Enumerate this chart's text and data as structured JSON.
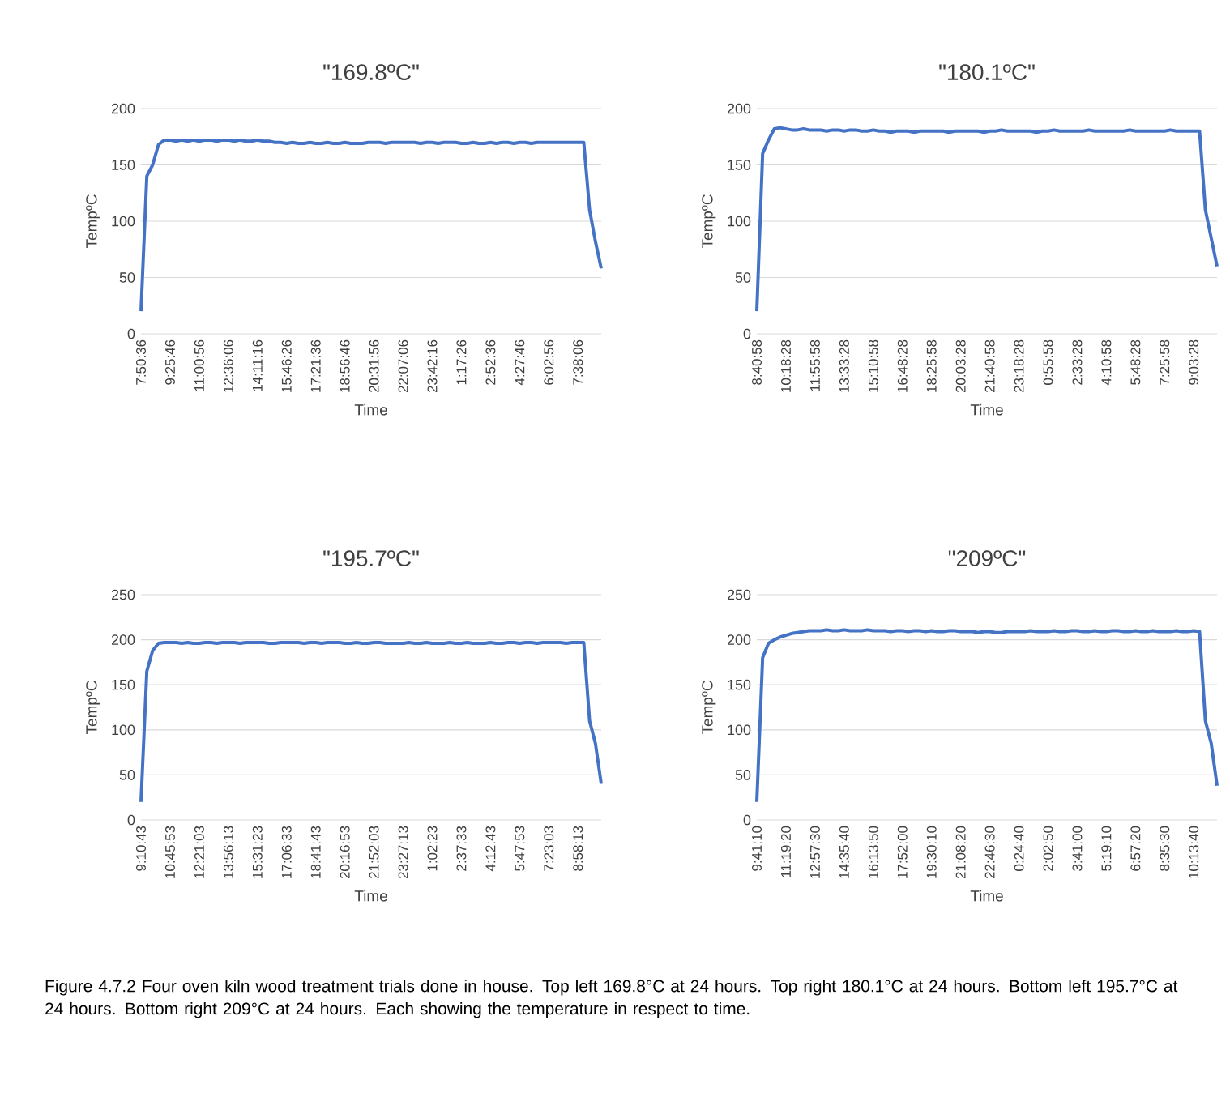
{
  "chart_data": [
    {
      "type": "line",
      "title": "\"169.8ºC\"",
      "xlabel": "Time",
      "ylabel": "TempºC",
      "color": "#4472c4",
      "grid": "y",
      "categories": [
        "7:50:36",
        null,
        null,
        null,
        null,
        "9:25:46",
        null,
        null,
        null,
        null,
        "11:00:56",
        null,
        null,
        null,
        null,
        "12:36:06",
        null,
        null,
        null,
        null,
        "14:11:16",
        null,
        null,
        null,
        null,
        "15:46:26",
        null,
        null,
        null,
        null,
        "17:21:36",
        null,
        null,
        null,
        null,
        "18:56:46",
        null,
        null,
        null,
        null,
        "20:31:56",
        null,
        null,
        null,
        null,
        "22:07:06",
        null,
        null,
        null,
        null,
        "23:42:16",
        null,
        null,
        null,
        null,
        "1:17:26",
        null,
        null,
        null,
        null,
        "2:52:36",
        null,
        null,
        null,
        null,
        "4:27:46",
        null,
        null,
        null,
        null,
        "6:02:56",
        null,
        null,
        null,
        null,
        "7:38:06",
        null,
        null,
        null,
        null
      ],
      "values": [
        20,
        140,
        150,
        168,
        172,
        172,
        171,
        172,
        171,
        172,
        171,
        172,
        172,
        171,
        172,
        172,
        171,
        172,
        171,
        171,
        172,
        171,
        171,
        170,
        170,
        169,
        170,
        169,
        169,
        170,
        169,
        169,
        170,
        169,
        169,
        170,
        169,
        169,
        169,
        170,
        170,
        170,
        169,
        170,
        170,
        170,
        170,
        170,
        169,
        170,
        170,
        169,
        170,
        170,
        170,
        169,
        169,
        170,
        169,
        169,
        170,
        169,
        170,
        170,
        169,
        170,
        170,
        169,
        170,
        170,
        170,
        170,
        170,
        170,
        170,
        170,
        170,
        110,
        82,
        58
      ],
      "ylim": [
        0,
        200
      ],
      "yticks": [
        0,
        50,
        100,
        150,
        200
      ]
    },
    {
      "type": "line",
      "title": "\"180.1ºC\"",
      "xlabel": "Time",
      "ylabel": "TempºC",
      "color": "#4472c4",
      "grid": "y",
      "categories": [
        "8:40:58",
        null,
        null,
        null,
        null,
        "10:18:28",
        null,
        null,
        null,
        null,
        "11:55:58",
        null,
        null,
        null,
        null,
        "13:33:28",
        null,
        null,
        null,
        null,
        "15:10:58",
        null,
        null,
        null,
        null,
        "16:48:28",
        null,
        null,
        null,
        null,
        "18:25:58",
        null,
        null,
        null,
        null,
        "20:03:28",
        null,
        null,
        null,
        null,
        "21:40:58",
        null,
        null,
        null,
        null,
        "23:18:28",
        null,
        null,
        null,
        null,
        "0:55:58",
        null,
        null,
        null,
        null,
        "2:33:28",
        null,
        null,
        null,
        null,
        "4:10:58",
        null,
        null,
        null,
        null,
        "5:48:28",
        null,
        null,
        null,
        null,
        "7:25:58",
        null,
        null,
        null,
        null,
        "9:03:28",
        null,
        null,
        null,
        null
      ],
      "values": [
        20,
        160,
        172,
        182,
        183,
        182,
        181,
        181,
        182,
        181,
        181,
        181,
        180,
        181,
        181,
        180,
        181,
        181,
        180,
        180,
        181,
        180,
        180,
        179,
        180,
        180,
        180,
        179,
        180,
        180,
        180,
        180,
        180,
        179,
        180,
        180,
        180,
        180,
        180,
        179,
        180,
        180,
        181,
        180,
        180,
        180,
        180,
        180,
        179,
        180,
        180,
        181,
        180,
        180,
        180,
        180,
        180,
        181,
        180,
        180,
        180,
        180,
        180,
        180,
        181,
        180,
        180,
        180,
        180,
        180,
        180,
        181,
        180,
        180,
        180,
        180,
        180,
        110,
        85,
        60
      ],
      "ylim": [
        0,
        200
      ],
      "yticks": [
        0,
        50,
        100,
        150,
        200
      ]
    },
    {
      "type": "line",
      "title": "\"195.7ºC\"",
      "xlabel": "Time",
      "ylabel": "TempºC",
      "color": "#4472c4",
      "grid": "y",
      "categories": [
        "9:10:43",
        null,
        null,
        null,
        null,
        "10:45:53",
        null,
        null,
        null,
        null,
        "12:21:03",
        null,
        null,
        null,
        null,
        "13:56:13",
        null,
        null,
        null,
        null,
        "15:31:23",
        null,
        null,
        null,
        null,
        "17:06:33",
        null,
        null,
        null,
        null,
        "18:41:43",
        null,
        null,
        null,
        null,
        "20:16:53",
        null,
        null,
        null,
        null,
        "21:52:03",
        null,
        null,
        null,
        null,
        "23:27:13",
        null,
        null,
        null,
        null,
        "1:02:23",
        null,
        null,
        null,
        null,
        "2:37:33",
        null,
        null,
        null,
        null,
        "4:12:43",
        null,
        null,
        null,
        null,
        "5:47:53",
        null,
        null,
        null,
        null,
        "7:23:03",
        null,
        null,
        null,
        null,
        "8:58:13",
        null,
        null,
        null,
        null
      ],
      "values": [
        20,
        165,
        188,
        196,
        197,
        197,
        197,
        196,
        197,
        196,
        196,
        197,
        197,
        196,
        197,
        197,
        197,
        196,
        197,
        197,
        197,
        197,
        196,
        196,
        197,
        197,
        197,
        197,
        196,
        197,
        197,
        196,
        197,
        197,
        197,
        196,
        196,
        197,
        196,
        196,
        197,
        197,
        196,
        196,
        196,
        196,
        197,
        196,
        196,
        197,
        196,
        196,
        196,
        197,
        196,
        196,
        197,
        196,
        196,
        196,
        197,
        196,
        196,
        197,
        197,
        196,
        197,
        197,
        196,
        197,
        197,
        197,
        197,
        196,
        197,
        197,
        197,
        110,
        85,
        40
      ],
      "ylim": [
        0,
        250
      ],
      "yticks": [
        0,
        50,
        100,
        150,
        200,
        250
      ]
    },
    {
      "type": "line",
      "title": "\"209ºC\"",
      "xlabel": "Time",
      "ylabel": "TempºC",
      "color": "#4472c4",
      "grid": "y",
      "categories": [
        "9:41:10",
        null,
        null,
        null,
        null,
        "11:19:20",
        null,
        null,
        null,
        null,
        "12:57:30",
        null,
        null,
        null,
        null,
        "14:35:40",
        null,
        null,
        null,
        null,
        "16:13:50",
        null,
        null,
        null,
        null,
        "17:52:00",
        null,
        null,
        null,
        null,
        "19:30:10",
        null,
        null,
        null,
        null,
        "21:08:20",
        null,
        null,
        null,
        null,
        "22:46:30",
        null,
        null,
        null,
        null,
        "0:24:40",
        null,
        null,
        null,
        null,
        "2:02:50",
        null,
        null,
        null,
        null,
        "3:41:00",
        null,
        null,
        null,
        null,
        "5:19:10",
        null,
        null,
        null,
        null,
        "6:57:20",
        null,
        null,
        null,
        null,
        "8:35:30",
        null,
        null,
        null,
        null,
        "10:13:40",
        null,
        null,
        null,
        null
      ],
      "values": [
        20,
        180,
        196,
        200,
        203,
        205,
        207,
        208,
        209,
        210,
        210,
        210,
        211,
        210,
        210,
        211,
        210,
        210,
        210,
        211,
        210,
        210,
        210,
        209,
        210,
        210,
        209,
        210,
        210,
        209,
        210,
        209,
        209,
        210,
        210,
        209,
        209,
        209,
        208,
        209,
        209,
        208,
        208,
        209,
        209,
        209,
        209,
        210,
        209,
        209,
        209,
        210,
        209,
        209,
        210,
        210,
        209,
        209,
        210,
        209,
        209,
        210,
        210,
        209,
        209,
        210,
        209,
        209,
        210,
        209,
        209,
        209,
        210,
        209,
        209,
        210,
        209,
        110,
        85,
        38
      ],
      "ylim": [
        0,
        250
      ],
      "yticks": [
        0,
        50,
        100,
        150,
        200,
        250
      ],
      "annotations": [
        "Figure 4.7.2 Four oven kiln wood treatment trials done in house. Top left 169.8°C at 24 hours. Top right 180.1°C at 24 hours.  Bottom left 195.7°C at 24 hours.  Bottom right 209°C at 24 hours. Each showing the temperature  in respect to time."
      ]
    }
  ]
}
